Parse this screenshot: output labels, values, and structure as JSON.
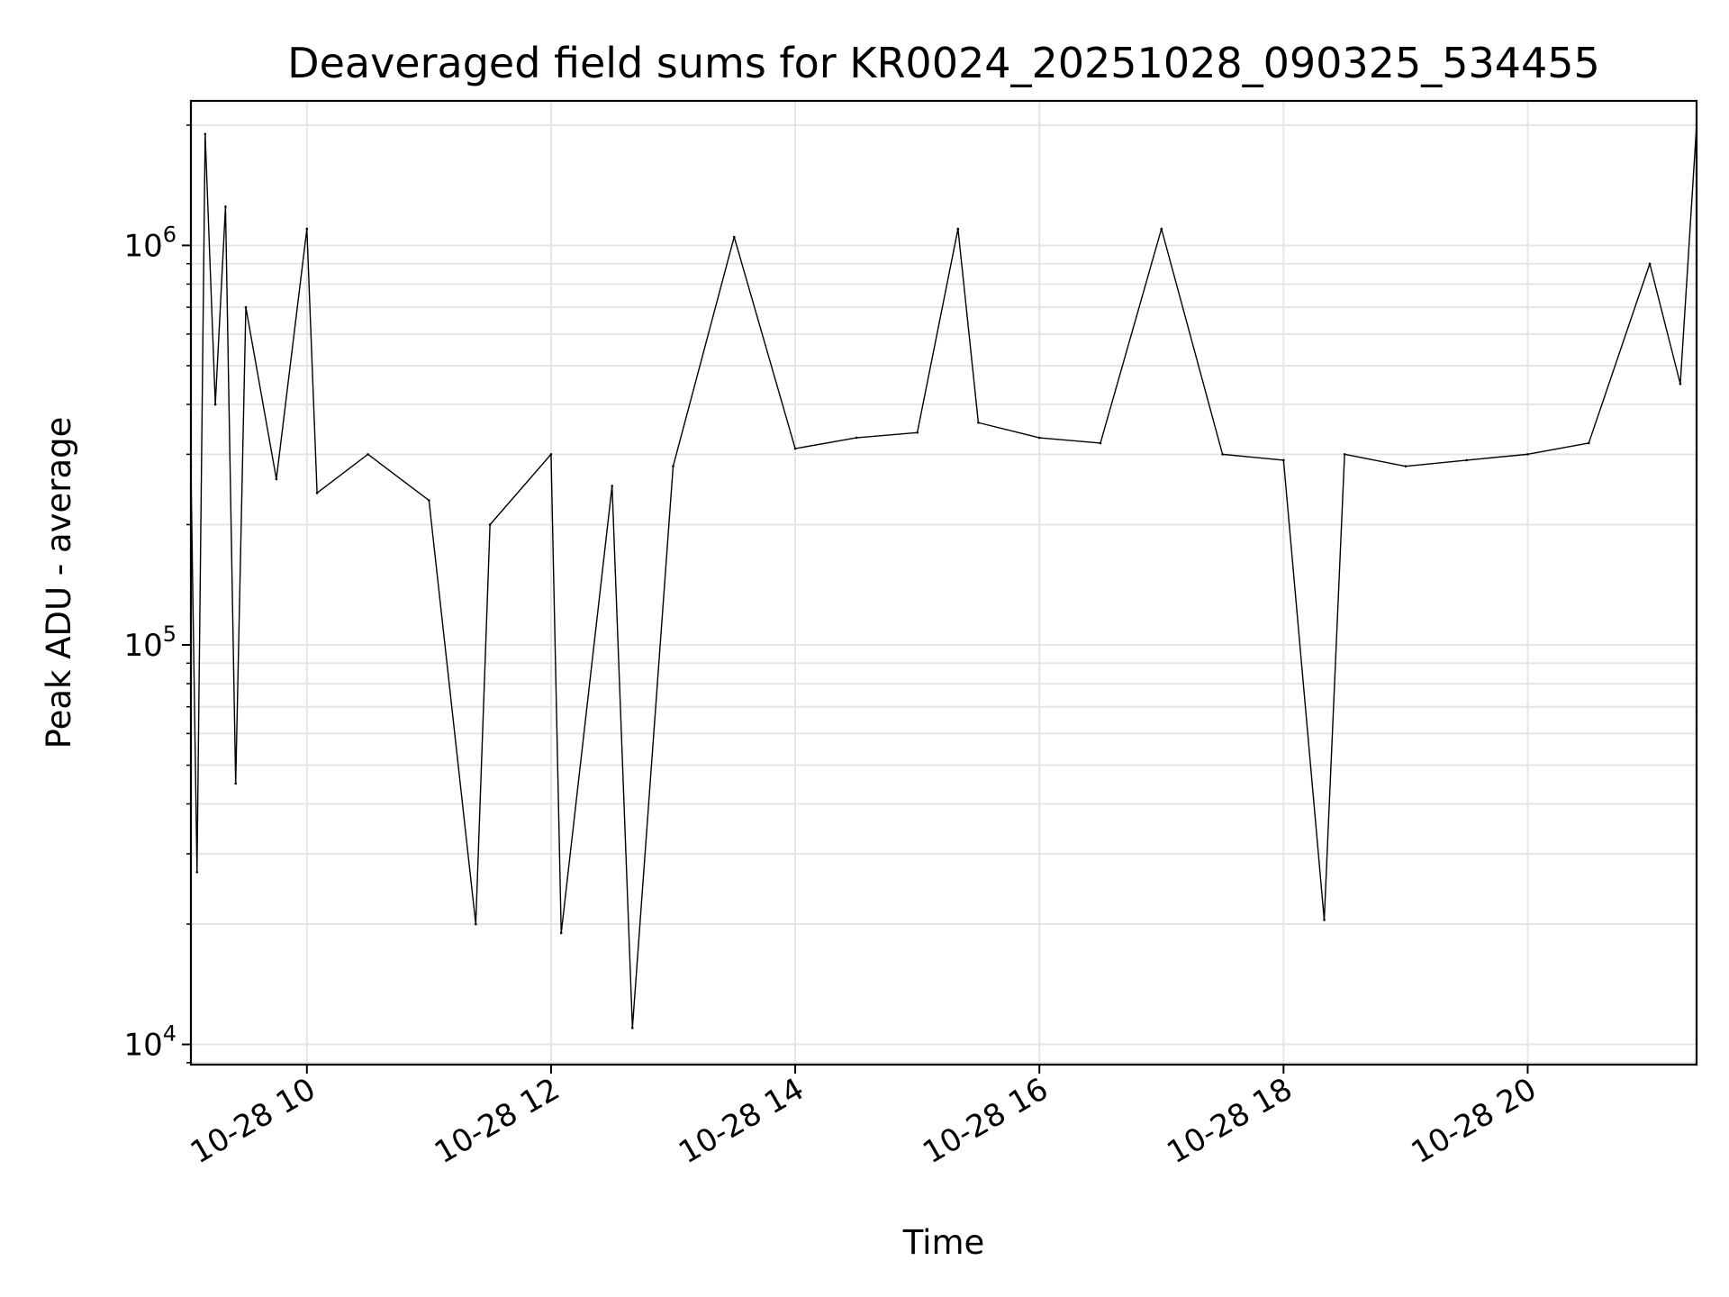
{
  "chart_data": {
    "type": "line",
    "title": "Deaveraged field sums for KR0024_20251028_090325_534455",
    "xlabel": "Time",
    "ylabel": "Peak ADU - average",
    "x_tick_labels": [
      "10-28 10",
      "10-28 12",
      "10-28 14",
      "10-28 16",
      "10-28 18",
      "10-28 20"
    ],
    "x_tick_times": [
      "2025-10-28T10:00",
      "2025-10-28T12:00",
      "2025-10-28T14:00",
      "2025-10-28T16:00",
      "2025-10-28T18:00",
      "2025-10-28T20:00"
    ],
    "xlim": [
      "2025-10-28T09:03",
      "2025-10-28T21:23"
    ],
    "y_scale": "log",
    "ylim": [
      8900,
      2300000
    ],
    "y_ticks": [
      {
        "value": 10000,
        "base": "10",
        "exp": "4"
      },
      {
        "value": 100000,
        "base": "10",
        "exp": "5"
      },
      {
        "value": 1000000,
        "base": "10",
        "exp": "6"
      }
    ],
    "grid": true,
    "line_color": "#000000",
    "grid_color": "#e5e5e5",
    "series": [
      {
        "x": [
          "2025-10-28T09:03",
          "2025-10-28T09:06",
          "2025-10-28T09:10",
          "2025-10-28T09:15",
          "2025-10-28T09:20",
          "2025-10-28T09:25",
          "2025-10-28T09:30",
          "2025-10-28T09:45",
          "2025-10-28T10:00",
          "2025-10-28T10:05",
          "2025-10-28T10:30",
          "2025-10-28T11:00",
          "2025-10-28T11:23",
          "2025-10-28T11:30",
          "2025-10-28T12:00",
          "2025-10-28T12:05",
          "2025-10-28T12:30",
          "2025-10-28T12:40",
          "2025-10-28T13:00",
          "2025-10-28T13:30",
          "2025-10-28T14:00",
          "2025-10-28T14:30",
          "2025-10-28T15:00",
          "2025-10-28T15:20",
          "2025-10-28T15:30",
          "2025-10-28T16:00",
          "2025-10-28T16:30",
          "2025-10-28T17:00",
          "2025-10-28T17:30",
          "2025-10-28T18:00",
          "2025-10-28T18:20",
          "2025-10-28T18:30",
          "2025-10-28T19:00",
          "2025-10-28T19:30",
          "2025-10-28T20:00",
          "2025-10-28T20:30",
          "2025-10-28T21:00",
          "2025-10-28T21:15",
          "2025-10-28T21:23"
        ],
        "values": [
          280000,
          27000,
          1900000,
          400000,
          1250000,
          45000,
          700000,
          260000,
          1100000,
          240000,
          300000,
          230000,
          20000,
          200000,
          300000,
          19000,
          250000,
          11000,
          280000,
          1050000,
          310000,
          330000,
          340000,
          1100000,
          360000,
          330000,
          320000,
          1100000,
          300000,
          290000,
          20500,
          300000,
          280000,
          290000,
          300000,
          320000,
          900000,
          450000,
          2000000
        ]
      }
    ]
  }
}
